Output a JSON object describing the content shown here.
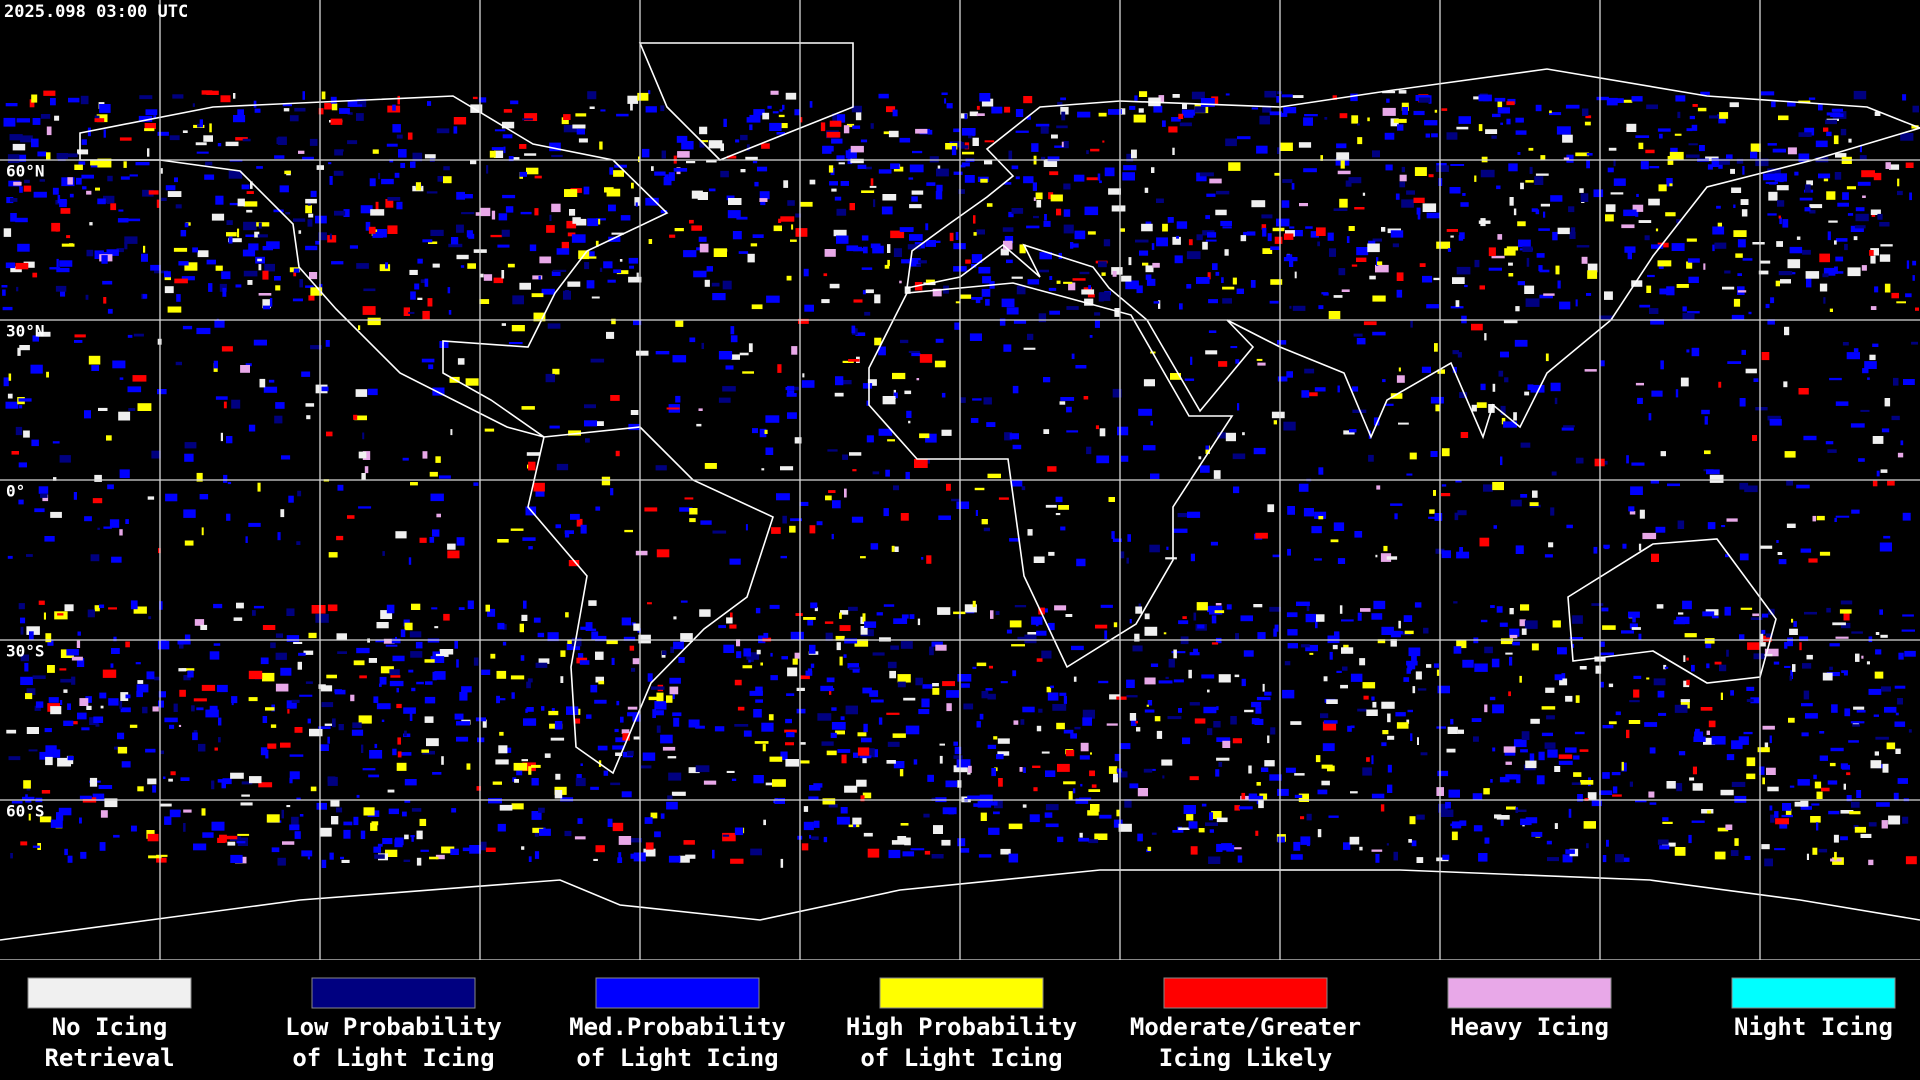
{
  "timestamp": "2025.098 03:00 UTC",
  "lat_labels": [
    "60°N",
    "30°N",
    "0°",
    "30°S",
    "60°S"
  ],
  "legend": [
    {
      "color": "#f0f0f0",
      "label": [
        "No Icing",
        "Retrieval"
      ]
    },
    {
      "color": "#000080",
      "label": [
        "Low Probability",
        "of Light Icing"
      ]
    },
    {
      "color": "#0000ff",
      "label": [
        "Med.Probability",
        "of Light Icing"
      ]
    },
    {
      "color": "#ffff00",
      "label": [
        "High Probability",
        "of Light Icing"
      ]
    },
    {
      "color": "#ff0000",
      "label": [
        "Moderate/Greater",
        "Icing Likely"
      ]
    },
    {
      "color": "#e8a8e8",
      "label": [
        "Heavy Icing"
      ]
    },
    {
      "color": "#00ffff",
      "label": [
        "Night Icing"
      ]
    }
  ]
}
